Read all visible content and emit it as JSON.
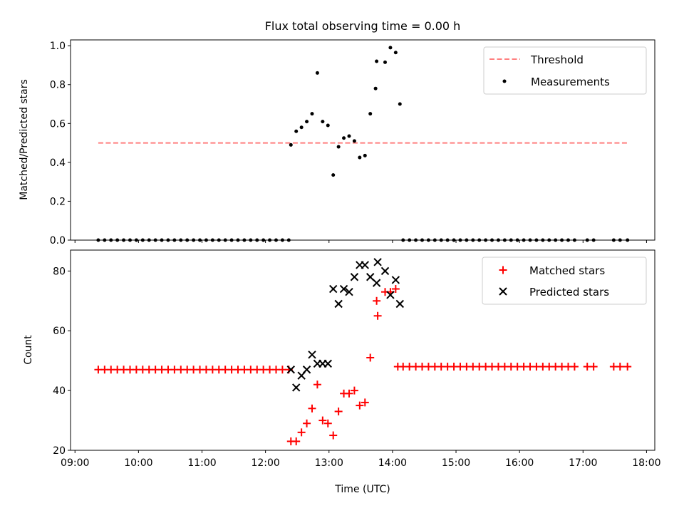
{
  "chart_data": [
    {
      "type": "scatter",
      "title": "Flux total observing time = 0.00 h",
      "xlabel": "",
      "ylabel": "Matched/Predicted stars",
      "xlim": [
        "09:00",
        "18:00"
      ],
      "ylim": [
        0,
        1.03
      ],
      "yticks": [
        "0.0",
        "0.2",
        "0.4",
        "0.6",
        "0.8",
        "1.0"
      ],
      "legend": {
        "position": "top-right",
        "entries": [
          "Threshold",
          "Measurements"
        ]
      },
      "threshold": {
        "name": "Threshold",
        "value": 0.5,
        "x_range": [
          "09:22",
          "17:42"
        ],
        "color": "#ff7f7f"
      },
      "series": [
        {
          "name": "Measurements",
          "color": "#000000",
          "points": [
            [
              "09:22",
              0
            ],
            [
              "09:28",
              0
            ],
            [
              "09:34",
              0
            ],
            [
              "09:40",
              0
            ],
            [
              "09:46",
              0
            ],
            [
              "09:52",
              0
            ],
            [
              "09:58",
              0
            ],
            [
              "10:04",
              0
            ],
            [
              "10:10",
              0
            ],
            [
              "10:16",
              0
            ],
            [
              "10:22",
              0
            ],
            [
              "10:28",
              0
            ],
            [
              "10:34",
              0
            ],
            [
              "10:40",
              0
            ],
            [
              "10:46",
              0
            ],
            [
              "10:52",
              0
            ],
            [
              "10:58",
              0
            ],
            [
              "11:04",
              0
            ],
            [
              "11:10",
              0
            ],
            [
              "11:16",
              0
            ],
            [
              "11:22",
              0
            ],
            [
              "11:28",
              0
            ],
            [
              "11:34",
              0
            ],
            [
              "11:40",
              0
            ],
            [
              "11:46",
              0
            ],
            [
              "11:52",
              0
            ],
            [
              "11:58",
              0
            ],
            [
              "12:04",
              0
            ],
            [
              "12:10",
              0
            ],
            [
              "12:16",
              0
            ],
            [
              "12:22",
              0
            ],
            [
              "12:24",
              0.49
            ],
            [
              "12:29",
              0.56
            ],
            [
              "12:34",
              0.58
            ],
            [
              "12:39",
              0.61
            ],
            [
              "12:44",
              0.65
            ],
            [
              "12:49",
              0.86
            ],
            [
              "12:54",
              0.61
            ],
            [
              "12:59",
              0.59
            ],
            [
              "13:04",
              0.335
            ],
            [
              "13:09",
              0.48
            ],
            [
              "13:14",
              0.525
            ],
            [
              "13:19",
              0.535
            ],
            [
              "13:24",
              0.51
            ],
            [
              "13:29",
              0.425
            ],
            [
              "13:34",
              0.435
            ],
            [
              "13:39",
              0.65
            ],
            [
              "13:44",
              0.78
            ],
            [
              "13:45",
              0.92
            ],
            [
              "13:53",
              0.915
            ],
            [
              "13:58",
              0.99
            ],
            [
              "14:03",
              0.965
            ],
            [
              "14:07",
              0.7
            ],
            [
              "14:10",
              0
            ],
            [
              "14:16",
              0
            ],
            [
              "14:22",
              0
            ],
            [
              "14:28",
              0
            ],
            [
              "14:34",
              0
            ],
            [
              "14:40",
              0
            ],
            [
              "14:46",
              0
            ],
            [
              "14:52",
              0
            ],
            [
              "14:58",
              0
            ],
            [
              "15:04",
              0
            ],
            [
              "15:10",
              0
            ],
            [
              "15:16",
              0
            ],
            [
              "15:22",
              0
            ],
            [
              "15:28",
              0
            ],
            [
              "15:34",
              0
            ],
            [
              "15:40",
              0
            ],
            [
              "15:46",
              0
            ],
            [
              "15:52",
              0
            ],
            [
              "15:58",
              0
            ],
            [
              "16:04",
              0
            ],
            [
              "16:10",
              0
            ],
            [
              "16:16",
              0
            ],
            [
              "16:22",
              0
            ],
            [
              "16:28",
              0
            ],
            [
              "16:34",
              0
            ],
            [
              "16:40",
              0
            ],
            [
              "16:46",
              0
            ],
            [
              "16:52",
              0
            ],
            [
              "17:04",
              0
            ],
            [
              "17:10",
              0
            ],
            [
              "17:29",
              0
            ],
            [
              "17:35",
              0
            ],
            [
              "17:42",
              0
            ]
          ]
        }
      ]
    },
    {
      "type": "scatter",
      "title": "",
      "xlabel": "Time (UTC)",
      "ylabel": "Count",
      "xlim": [
        "09:00",
        "18:00"
      ],
      "ylim": [
        20,
        87
      ],
      "yticks": [
        "20",
        "40",
        "60",
        "80"
      ],
      "xticks": [
        "09:00",
        "10:00",
        "11:00",
        "12:00",
        "13:00",
        "14:00",
        "15:00",
        "16:00",
        "17:00",
        "18:00"
      ],
      "legend": {
        "position": "top-right",
        "entries": [
          "Matched stars",
          "Predicted stars"
        ]
      },
      "series": [
        {
          "name": "Matched stars",
          "marker": "+",
          "color": "#ff0000",
          "points": [
            [
              "09:22",
              47
            ],
            [
              "09:28",
              47
            ],
            [
              "09:34",
              47
            ],
            [
              "09:40",
              47
            ],
            [
              "09:46",
              47
            ],
            [
              "09:52",
              47
            ],
            [
              "09:58",
              47
            ],
            [
              "10:04",
              47
            ],
            [
              "10:10",
              47
            ],
            [
              "10:16",
              47
            ],
            [
              "10:22",
              47
            ],
            [
              "10:28",
              47
            ],
            [
              "10:34",
              47
            ],
            [
              "10:40",
              47
            ],
            [
              "10:46",
              47
            ],
            [
              "10:52",
              47
            ],
            [
              "10:58",
              47
            ],
            [
              "11:04",
              47
            ],
            [
              "11:10",
              47
            ],
            [
              "11:16",
              47
            ],
            [
              "11:22",
              47
            ],
            [
              "11:28",
              47
            ],
            [
              "11:34",
              47
            ],
            [
              "11:40",
              47
            ],
            [
              "11:46",
              47
            ],
            [
              "11:52",
              47
            ],
            [
              "11:58",
              47
            ],
            [
              "12:04",
              47
            ],
            [
              "12:10",
              47
            ],
            [
              "12:16",
              47
            ],
            [
              "12:22",
              47
            ],
            [
              "12:24",
              23
            ],
            [
              "12:29",
              23
            ],
            [
              "12:34",
              26
            ],
            [
              "12:39",
              29
            ],
            [
              "12:44",
              34
            ],
            [
              "12:49",
              42
            ],
            [
              "12:54",
              30
            ],
            [
              "12:59",
              29
            ],
            [
              "13:04",
              25
            ],
            [
              "13:09",
              33
            ],
            [
              "13:14",
              39
            ],
            [
              "13:19",
              39
            ],
            [
              "13:24",
              40
            ],
            [
              "13:29",
              35
            ],
            [
              "13:34",
              36
            ],
            [
              "13:39",
              51
            ],
            [
              "13:45",
              70
            ],
            [
              "13:46",
              65
            ],
            [
              "13:53",
              73
            ],
            [
              "13:58",
              73
            ],
            [
              "14:03",
              74
            ],
            [
              "14:05",
              48
            ],
            [
              "14:10",
              48
            ],
            [
              "14:16",
              48
            ],
            [
              "14:22",
              48
            ],
            [
              "14:28",
              48
            ],
            [
              "14:34",
              48
            ],
            [
              "14:40",
              48
            ],
            [
              "14:46",
              48
            ],
            [
              "14:52",
              48
            ],
            [
              "14:58",
              48
            ],
            [
              "15:04",
              48
            ],
            [
              "15:10",
              48
            ],
            [
              "15:16",
              48
            ],
            [
              "15:22",
              48
            ],
            [
              "15:28",
              48
            ],
            [
              "15:34",
              48
            ],
            [
              "15:40",
              48
            ],
            [
              "15:46",
              48
            ],
            [
              "15:52",
              48
            ],
            [
              "15:58",
              48
            ],
            [
              "16:04",
              48
            ],
            [
              "16:10",
              48
            ],
            [
              "16:16",
              48
            ],
            [
              "16:22",
              48
            ],
            [
              "16:28",
              48
            ],
            [
              "16:34",
              48
            ],
            [
              "16:40",
              48
            ],
            [
              "16:46",
              48
            ],
            [
              "16:52",
              48
            ],
            [
              "17:04",
              48
            ],
            [
              "17:10",
              48
            ],
            [
              "17:29",
              48
            ],
            [
              "17:35",
              48
            ],
            [
              "17:42",
              48
            ]
          ]
        },
        {
          "name": "Predicted stars",
          "marker": "x",
          "color": "#000000",
          "points": [
            [
              "12:24",
              47
            ],
            [
              "12:29",
              41
            ],
            [
              "12:34",
              45
            ],
            [
              "12:39",
              47
            ],
            [
              "12:44",
              52
            ],
            [
              "12:49",
              49
            ],
            [
              "12:54",
              49
            ],
            [
              "12:59",
              49
            ],
            [
              "13:04",
              74
            ],
            [
              "13:09",
              69
            ],
            [
              "13:14",
              74
            ],
            [
              "13:19",
              73
            ],
            [
              "13:24",
              78
            ],
            [
              "13:29",
              82
            ],
            [
              "13:34",
              82
            ],
            [
              "13:39",
              78
            ],
            [
              "13:45",
              76
            ],
            [
              "13:46",
              83
            ],
            [
              "13:53",
              80
            ],
            [
              "13:58",
              72
            ],
            [
              "14:03",
              77
            ],
            [
              "14:07",
              69
            ]
          ]
        }
      ]
    }
  ]
}
